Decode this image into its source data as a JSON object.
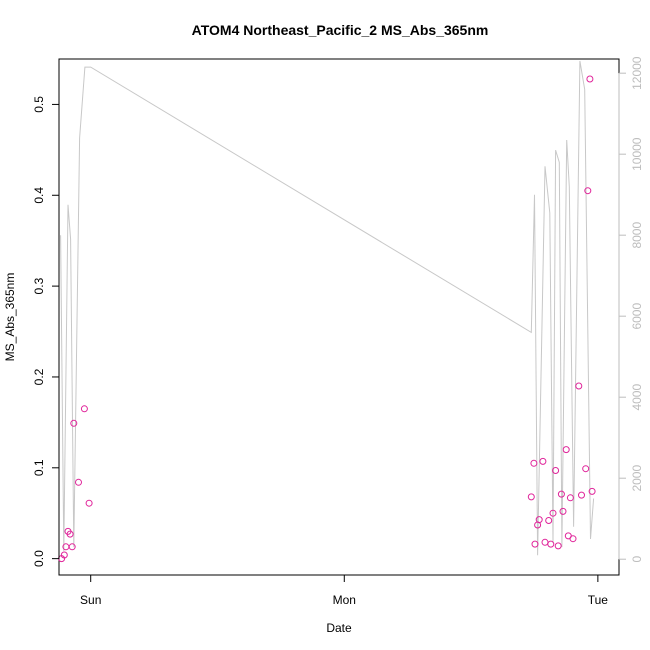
{
  "chart_data": {
    "type": "scatter",
    "title": "ATOM4 Northeast_Pacific_2 MS_Abs_365nm",
    "xlabel": "Date",
    "ylabel": "MS_Abs_365nm",
    "x_ticks": [
      {
        "t": 0,
        "label": "Sun"
      },
      {
        "t": 24,
        "label": "Mon"
      },
      {
        "t": 48,
        "label": "Tue"
      }
    ],
    "x_range_hours": [
      -3.0,
      50.0
    ],
    "y_ticks": [
      0.0,
      0.1,
      0.2,
      0.3,
      0.4,
      0.5
    ],
    "ylim": [
      -0.018,
      0.55
    ],
    "y2_ticks": [
      0,
      2000,
      4000,
      6000,
      8000,
      10000,
      12000
    ],
    "y2lim": [
      -390,
      12350
    ],
    "point_color": "#e0249a",
    "line_color": "#c8c8c8",
    "points": [
      {
        "t": -2.75,
        "y": 0.0
      },
      {
        "t": -2.5,
        "y": 0.004
      },
      {
        "t": -2.35,
        "y": 0.013
      },
      {
        "t": -2.15,
        "y": 0.03
      },
      {
        "t": -1.95,
        "y": 0.027
      },
      {
        "t": -1.75,
        "y": 0.013
      },
      {
        "t": -1.6,
        "y": 0.149
      },
      {
        "t": -1.15,
        "y": 0.084
      },
      {
        "t": -0.6,
        "y": 0.165
      },
      {
        "t": -0.15,
        "y": 0.061
      },
      {
        "t": 41.7,
        "y": 0.068
      },
      {
        "t": 41.95,
        "y": 0.105
      },
      {
        "t": 42.05,
        "y": 0.016
      },
      {
        "t": 42.3,
        "y": 0.037
      },
      {
        "t": 42.45,
        "y": 0.043
      },
      {
        "t": 42.8,
        "y": 0.107
      },
      {
        "t": 43.0,
        "y": 0.018
      },
      {
        "t": 43.35,
        "y": 0.042
      },
      {
        "t": 43.55,
        "y": 0.016
      },
      {
        "t": 43.75,
        "y": 0.05
      },
      {
        "t": 44.0,
        "y": 0.097
      },
      {
        "t": 44.25,
        "y": 0.014
      },
      {
        "t": 44.55,
        "y": 0.071
      },
      {
        "t": 44.7,
        "y": 0.052
      },
      {
        "t": 45.0,
        "y": 0.12
      },
      {
        "t": 45.2,
        "y": 0.025
      },
      {
        "t": 45.4,
        "y": 0.067
      },
      {
        "t": 45.65,
        "y": 0.022
      },
      {
        "t": 46.2,
        "y": 0.19
      },
      {
        "t": 46.45,
        "y": 0.07
      },
      {
        "t": 46.85,
        "y": 0.099
      },
      {
        "t": 47.05,
        "y": 0.405
      },
      {
        "t": 47.25,
        "y": 0.528
      },
      {
        "t": 47.45,
        "y": 0.074
      }
    ],
    "line_series_y2": [
      {
        "t": -2.85,
        "v": 8000
      },
      {
        "t": -2.55,
        "v": 200
      },
      {
        "t": -2.15,
        "v": 8750
      },
      {
        "t": -1.9,
        "v": 7900
      },
      {
        "t": -1.6,
        "v": 300
      },
      {
        "t": -1.05,
        "v": 10400
      },
      {
        "t": -0.55,
        "v": 12150
      },
      {
        "t": 0.0,
        "v": 12150
      },
      {
        "t": 41.7,
        "v": 5600
      },
      {
        "t": 42.0,
        "v": 9000
      },
      {
        "t": 42.3,
        "v": 100
      },
      {
        "t": 43.0,
        "v": 9700
      },
      {
        "t": 43.45,
        "v": 8550
      },
      {
        "t": 43.75,
        "v": 400
      },
      {
        "t": 44.0,
        "v": 10100
      },
      {
        "t": 44.35,
        "v": 9800
      },
      {
        "t": 44.6,
        "v": 300
      },
      {
        "t": 45.05,
        "v": 10350
      },
      {
        "t": 45.3,
        "v": 9200
      },
      {
        "t": 45.7,
        "v": 800
      },
      {
        "t": 46.3,
        "v": 12300
      },
      {
        "t": 46.75,
        "v": 11600
      },
      {
        "t": 47.3,
        "v": 500
      },
      {
        "t": 47.6,
        "v": 1500
      }
    ]
  }
}
